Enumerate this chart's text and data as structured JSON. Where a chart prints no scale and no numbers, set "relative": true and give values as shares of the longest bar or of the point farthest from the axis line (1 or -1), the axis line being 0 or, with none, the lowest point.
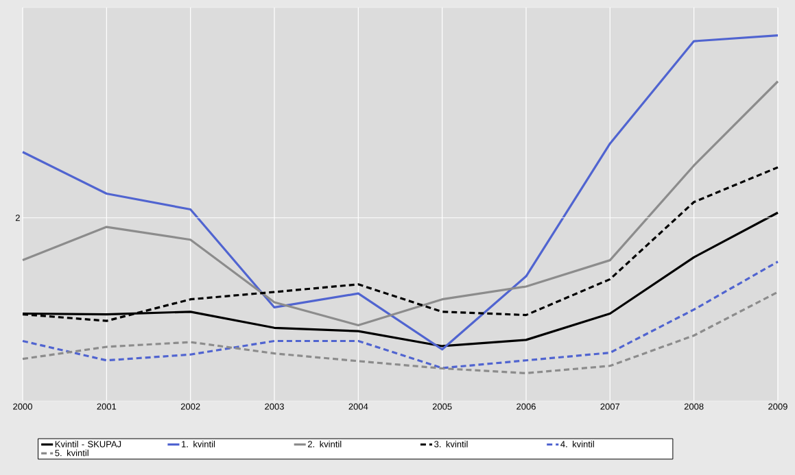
{
  "chart_data": {
    "type": "line",
    "relative": true,
    "x": [
      2000,
      2001,
      2002,
      2003,
      2004,
      2005,
      2006,
      2007,
      2008,
      2009
    ],
    "xlim": [
      2000,
      2009
    ],
    "xticks": [
      2000,
      2001,
      2002,
      2003,
      2004,
      2005,
      2006,
      2007,
      2008,
      2009
    ],
    "grid": "x",
    "legend": "bottom",
    "marker": "none",
    "ref_lines": [
      {
        "axis": "y",
        "value": 0.501,
        "color": "#ffffff"
      }
    ],
    "annotations": [
      "2"
    ],
    "series": [
      {
        "name": "Kvintil - SKUPAJ",
        "color": "#000000",
        "line_style": "solid",
        "values": [
          0.239,
          0.237,
          0.244,
          0.2,
          0.191,
          0.15,
          0.167,
          0.239,
          0.393,
          0.515
        ]
      },
      {
        "name": "1. kvintil",
        "color": "#5064d0",
        "line_style": "solid",
        "values": [
          0.681,
          0.567,
          0.524,
          0.256,
          0.294,
          0.141,
          0.341,
          0.704,
          0.984,
          1
        ]
      },
      {
        "name": "2. kvintil",
        "color": "#8c8c8c",
        "line_style": "solid",
        "values": [
          0.385,
          0.476,
          0.441,
          0.27,
          0.207,
          0.278,
          0.313,
          0.385,
          0.644,
          0.874
        ]
      },
      {
        "name": "3. kvintil",
        "color": "#000000",
        "line_style": "dashed",
        "values": [
          0.237,
          0.219,
          0.278,
          0.298,
          0.319,
          0.244,
          0.235,
          0.333,
          0.544,
          0.639
        ]
      },
      {
        "name": "4. kvintil",
        "color": "#5064d0",
        "line_style": "dashed",
        "values": [
          0.164,
          0.111,
          0.127,
          0.164,
          0.164,
          0.09,
          0.111,
          0.132,
          0.25,
          0.381
        ]
      },
      {
        "name": "5. kvintil",
        "color": "#8c8c8c",
        "line_style": "dashed",
        "values": [
          0.115,
          0.148,
          0.161,
          0.13,
          0.109,
          0.089,
          0.076,
          0.096,
          0.179,
          0.298
        ]
      }
    ]
  }
}
